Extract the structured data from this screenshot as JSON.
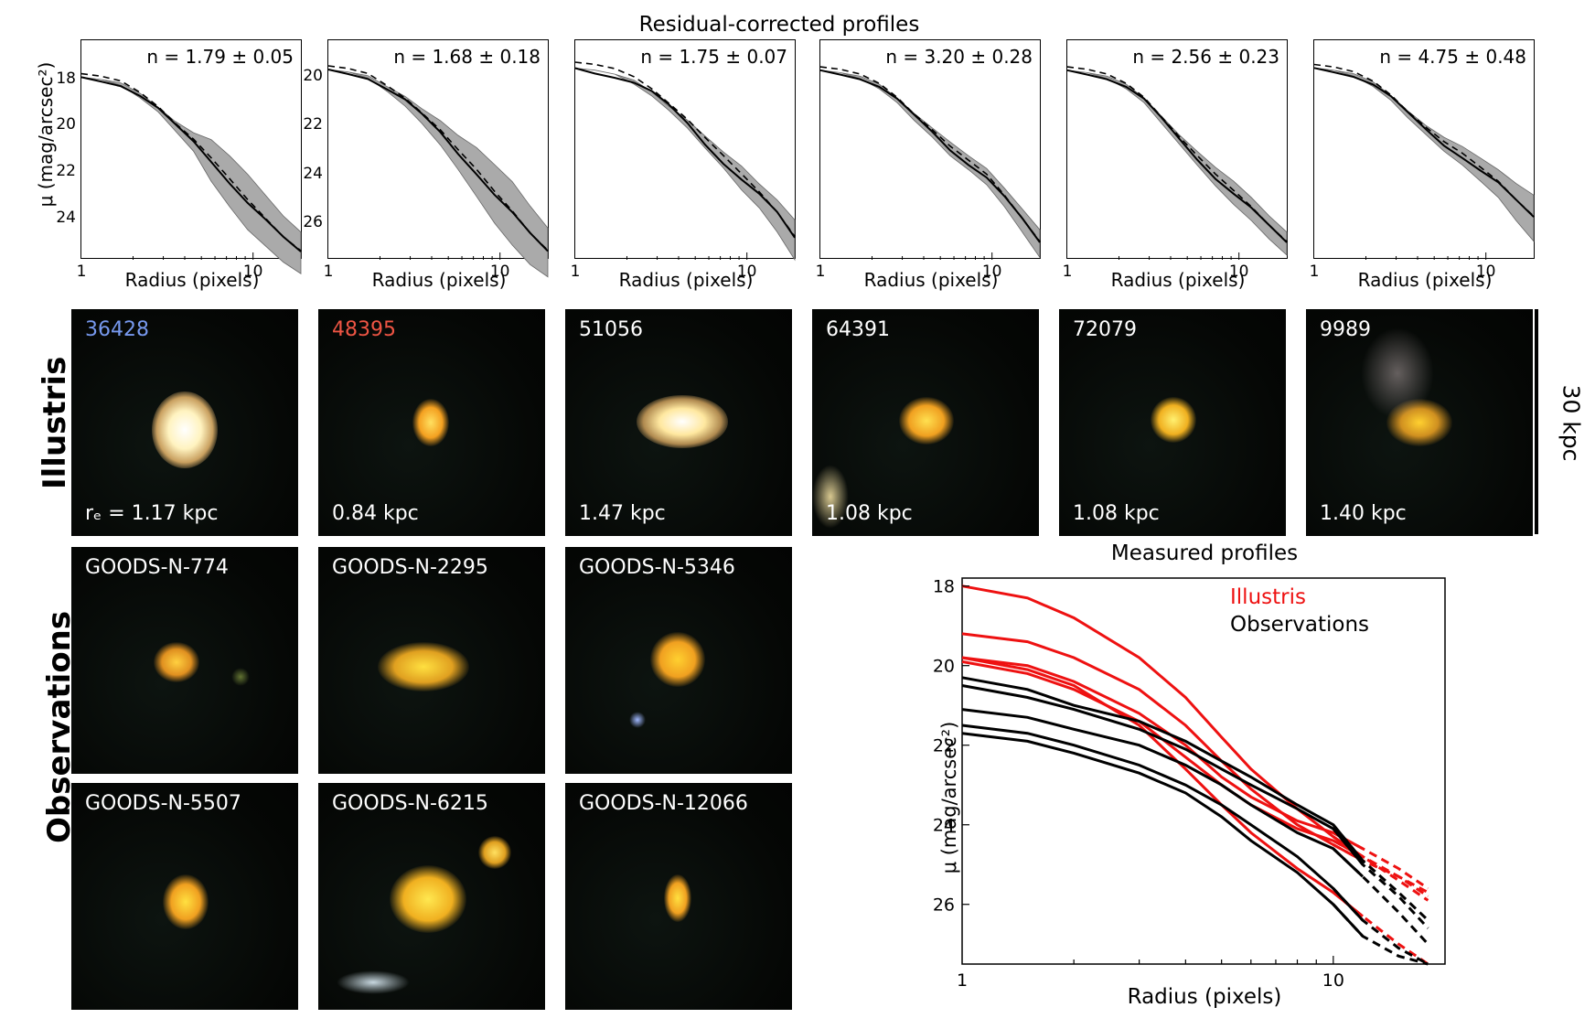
{
  "top_title": "Residual-corrected profiles",
  "top_panels": [
    {
      "n_label": "n = 1.79 ± 0.05",
      "yticks": [
        "18",
        "20",
        "22",
        "24"
      ],
      "ylim": [
        25.8,
        16.3
      ]
    },
    {
      "n_label": "n = 1.68 ± 0.18",
      "yticks": [
        "20",
        "22",
        "24",
        "26"
      ],
      "ylim": [
        27.5,
        18.5
      ]
    },
    {
      "n_label": "n = 1.75 ± 0.07",
      "yticks": [],
      "ylim": [
        23.5,
        18
      ]
    },
    {
      "n_label": "n = 3.20 ± 0.28",
      "yticks": [],
      "ylim": [
        25.8,
        16.3
      ]
    },
    {
      "n_label": "n = 2.56 ± 0.23",
      "yticks": [],
      "ylim": [
        25.8,
        16.3
      ]
    },
    {
      "n_label": "n = 4.75 ± 0.48",
      "yticks": [],
      "ylim": [
        25.8,
        16.3
      ]
    }
  ],
  "top_ylabel": "μ (mag/arcsec²)",
  "top_xlabel": "Radius (pixels)",
  "xtick_1": "1",
  "xtick_10": "10",
  "illustris_label": "Illustris",
  "observations_label": "Observations",
  "scale_label": "30 kpc",
  "illustris_images": [
    {
      "id": "36428",
      "id_color": "#7799ee",
      "re": "rₑ = 1.17 kpc"
    },
    {
      "id": "48395",
      "id_color": "#ee5544",
      "re": "0.84 kpc"
    },
    {
      "id": "51056",
      "id_color": "#ffffff",
      "re": "1.47 kpc"
    },
    {
      "id": "64391",
      "id_color": "#ffffff",
      "re": "1.08 kpc"
    },
    {
      "id": "72079",
      "id_color": "#ffffff",
      "re": "1.08 kpc"
    },
    {
      "id": "9989",
      "id_color": "#ffffff",
      "re": "1.40 kpc"
    }
  ],
  "observation_images": [
    {
      "id": "GOODS-N-774"
    },
    {
      "id": "GOODS-N-2295"
    },
    {
      "id": "GOODS-N-5346"
    },
    {
      "id": "GOODS-N-5507"
    },
    {
      "id": "GOODS-N-6215"
    },
    {
      "id": "GOODS-N-12066"
    }
  ],
  "chart_data": {
    "type": "line",
    "title": "Measured profiles",
    "xlabel": "Radius (pixels)",
    "ylabel": "μ (mag/arcsec²)",
    "xscale": "log",
    "xlim": [
      1,
      20
    ],
    "ylim": [
      27.5,
      17.8
    ],
    "xticks": [
      "1",
      "10"
    ],
    "yticks": [
      "18",
      "20",
      "22",
      "24",
      "26"
    ],
    "legend": [
      {
        "label": "Illustris",
        "color": "#ee1111"
      },
      {
        "label": "Observations",
        "color": "#000000"
      }
    ],
    "series": [
      {
        "name": "Illustris 1",
        "color": "#ee1111",
        "x": [
          1,
          1.5,
          2,
          3,
          4,
          5,
          6,
          8,
          10,
          12,
          15,
          18
        ],
        "y": [
          18,
          18.3,
          18.8,
          19.8,
          20.8,
          21.8,
          22.6,
          23.6,
          24.3,
          24.8,
          25.4,
          25.9
        ]
      },
      {
        "name": "Illustris 2",
        "color": "#ee1111",
        "x": [
          1,
          1.5,
          2,
          3,
          4,
          5,
          6,
          8,
          10,
          12,
          15,
          18
        ],
        "y": [
          19.2,
          19.4,
          19.8,
          20.6,
          21.5,
          22.4,
          23.1,
          24,
          24.5,
          24.9,
          25.3,
          25.7
        ]
      },
      {
        "name": "Illustris 3",
        "color": "#ee1111",
        "x": [
          1,
          1.5,
          2,
          3,
          4,
          5,
          6,
          8,
          10,
          12,
          15,
          18
        ],
        "y": [
          19.8,
          20,
          20.4,
          21.2,
          22,
          22.8,
          23.3,
          23.9,
          24.2,
          24.6,
          25.1,
          25.6
        ]
      },
      {
        "name": "Illustris 4",
        "color": "#ee1111",
        "x": [
          1,
          1.5,
          2,
          3,
          4,
          5,
          6,
          8,
          10,
          12,
          15,
          18
        ],
        "y": [
          19.9,
          20.2,
          20.6,
          21.4,
          22.3,
          23,
          23.5,
          24.1,
          24.4,
          24.8,
          25.3,
          25.8
        ]
      },
      {
        "name": "Illustris 5",
        "color": "#ee1111",
        "x": [
          1,
          1.5,
          2,
          3,
          4,
          5,
          6,
          8,
          10,
          12,
          15,
          18
        ],
        "y": [
          19.8,
          20.1,
          20.5,
          21.5,
          22.6,
          23.5,
          24.2,
          25.1,
          25.7,
          26.3,
          27,
          27.5
        ]
      },
      {
        "name": "Observation 1",
        "color": "#000000",
        "x": [
          1,
          1.5,
          2,
          3,
          4,
          5,
          6,
          8,
          10,
          12,
          15,
          18
        ],
        "y": [
          20.3,
          20.6,
          21,
          21.4,
          21.9,
          22.4,
          22.8,
          23.5,
          24,
          24.9,
          25.7,
          26.4
        ]
      },
      {
        "name": "Observation 2",
        "color": "#000000",
        "x": [
          1,
          1.5,
          2,
          3,
          4,
          5,
          6,
          8,
          10,
          12,
          15,
          18
        ],
        "y": [
          20.5,
          20.8,
          21.1,
          21.6,
          22.1,
          22.6,
          23,
          23.6,
          24.1,
          25,
          25.8,
          26.6
        ]
      },
      {
        "name": "Observation 3",
        "color": "#000000",
        "x": [
          1,
          1.5,
          2,
          3,
          4,
          5,
          6,
          8,
          10,
          12,
          15,
          18
        ],
        "y": [
          21.1,
          21.3,
          21.6,
          22,
          22.5,
          23,
          23.5,
          24.2,
          24.6,
          25.3,
          26.2,
          27
        ]
      },
      {
        "name": "Observation 4",
        "color": "#000000",
        "x": [
          1,
          1.5,
          2,
          3,
          4,
          5,
          6,
          8,
          10,
          12,
          15,
          18
        ],
        "y": [
          21.5,
          21.7,
          22,
          22.5,
          23,
          23.5,
          24,
          24.8,
          25.6,
          26.4,
          27.1,
          27.5
        ]
      },
      {
        "name": "Observation 5",
        "color": "#000000",
        "x": [
          1,
          1.5,
          2,
          3,
          4,
          5,
          6,
          8,
          10,
          12,
          15,
          18
        ],
        "y": [
          21.7,
          21.9,
          22.2,
          22.7,
          23.2,
          23.8,
          24.4,
          25.2,
          26,
          26.8,
          27.3,
          27.5
        ]
      }
    ]
  }
}
